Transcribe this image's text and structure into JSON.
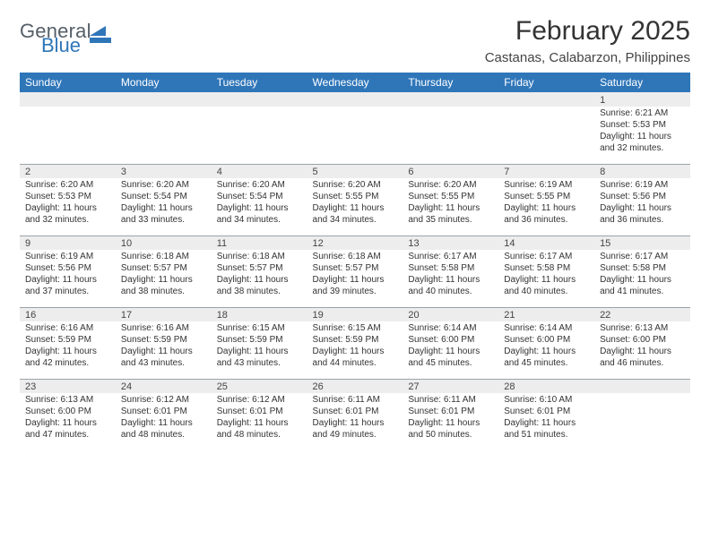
{
  "brand": {
    "word1": "General",
    "word2": "Blue",
    "text_color": "#555f68",
    "accent_color": "#2f76b9"
  },
  "header": {
    "title": "February 2025",
    "location": "Castanas, Calabarzon, Philippines",
    "title_color": "#333333",
    "title_fontsize": 30,
    "location_fontsize": 15
  },
  "weekdays": [
    "Sunday",
    "Monday",
    "Tuesday",
    "Wednesday",
    "Thursday",
    "Friday",
    "Saturday"
  ],
  "colors": {
    "header_bar_bg": "#2f76b9",
    "header_bar_text": "#ffffff",
    "date_row_bg": "#ededed",
    "date_row_border": "#9aa3a8",
    "body_text": "#333333"
  },
  "calendar": {
    "week1": {
      "dates": [
        "",
        "",
        "",
        "",
        "",
        "",
        "1"
      ],
      "cells": [
        "",
        "",
        "",
        "",
        "",
        "",
        "Sunrise: 6:21 AM\nSunset: 5:53 PM\nDaylight: 11 hours and 32 minutes."
      ]
    },
    "week2": {
      "dates": [
        "2",
        "3",
        "4",
        "5",
        "6",
        "7",
        "8"
      ],
      "cells": [
        "Sunrise: 6:20 AM\nSunset: 5:53 PM\nDaylight: 11 hours and 32 minutes.",
        "Sunrise: 6:20 AM\nSunset: 5:54 PM\nDaylight: 11 hours and 33 minutes.",
        "Sunrise: 6:20 AM\nSunset: 5:54 PM\nDaylight: 11 hours and 34 minutes.",
        "Sunrise: 6:20 AM\nSunset: 5:55 PM\nDaylight: 11 hours and 34 minutes.",
        "Sunrise: 6:20 AM\nSunset: 5:55 PM\nDaylight: 11 hours and 35 minutes.",
        "Sunrise: 6:19 AM\nSunset: 5:55 PM\nDaylight: 11 hours and 36 minutes.",
        "Sunrise: 6:19 AM\nSunset: 5:56 PM\nDaylight: 11 hours and 36 minutes."
      ]
    },
    "week3": {
      "dates": [
        "9",
        "10",
        "11",
        "12",
        "13",
        "14",
        "15"
      ],
      "cells": [
        "Sunrise: 6:19 AM\nSunset: 5:56 PM\nDaylight: 11 hours and 37 minutes.",
        "Sunrise: 6:18 AM\nSunset: 5:57 PM\nDaylight: 11 hours and 38 minutes.",
        "Sunrise: 6:18 AM\nSunset: 5:57 PM\nDaylight: 11 hours and 38 minutes.",
        "Sunrise: 6:18 AM\nSunset: 5:57 PM\nDaylight: 11 hours and 39 minutes.",
        "Sunrise: 6:17 AM\nSunset: 5:58 PM\nDaylight: 11 hours and 40 minutes.",
        "Sunrise: 6:17 AM\nSunset: 5:58 PM\nDaylight: 11 hours and 40 minutes.",
        "Sunrise: 6:17 AM\nSunset: 5:58 PM\nDaylight: 11 hours and 41 minutes."
      ]
    },
    "week4": {
      "dates": [
        "16",
        "17",
        "18",
        "19",
        "20",
        "21",
        "22"
      ],
      "cells": [
        "Sunrise: 6:16 AM\nSunset: 5:59 PM\nDaylight: 11 hours and 42 minutes.",
        "Sunrise: 6:16 AM\nSunset: 5:59 PM\nDaylight: 11 hours and 43 minutes.",
        "Sunrise: 6:15 AM\nSunset: 5:59 PM\nDaylight: 11 hours and 43 minutes.",
        "Sunrise: 6:15 AM\nSunset: 5:59 PM\nDaylight: 11 hours and 44 minutes.",
        "Sunrise: 6:14 AM\nSunset: 6:00 PM\nDaylight: 11 hours and 45 minutes.",
        "Sunrise: 6:14 AM\nSunset: 6:00 PM\nDaylight: 11 hours and 45 minutes.",
        "Sunrise: 6:13 AM\nSunset: 6:00 PM\nDaylight: 11 hours and 46 minutes."
      ]
    },
    "week5": {
      "dates": [
        "23",
        "24",
        "25",
        "26",
        "27",
        "28",
        ""
      ],
      "cells": [
        "Sunrise: 6:13 AM\nSunset: 6:00 PM\nDaylight: 11 hours and 47 minutes.",
        "Sunrise: 6:12 AM\nSunset: 6:01 PM\nDaylight: 11 hours and 48 minutes.",
        "Sunrise: 6:12 AM\nSunset: 6:01 PM\nDaylight: 11 hours and 48 minutes.",
        "Sunrise: 6:11 AM\nSunset: 6:01 PM\nDaylight: 11 hours and 49 minutes.",
        "Sunrise: 6:11 AM\nSunset: 6:01 PM\nDaylight: 11 hours and 50 minutes.",
        "Sunrise: 6:10 AM\nSunset: 6:01 PM\nDaylight: 11 hours and 51 minutes.",
        ""
      ]
    }
  }
}
